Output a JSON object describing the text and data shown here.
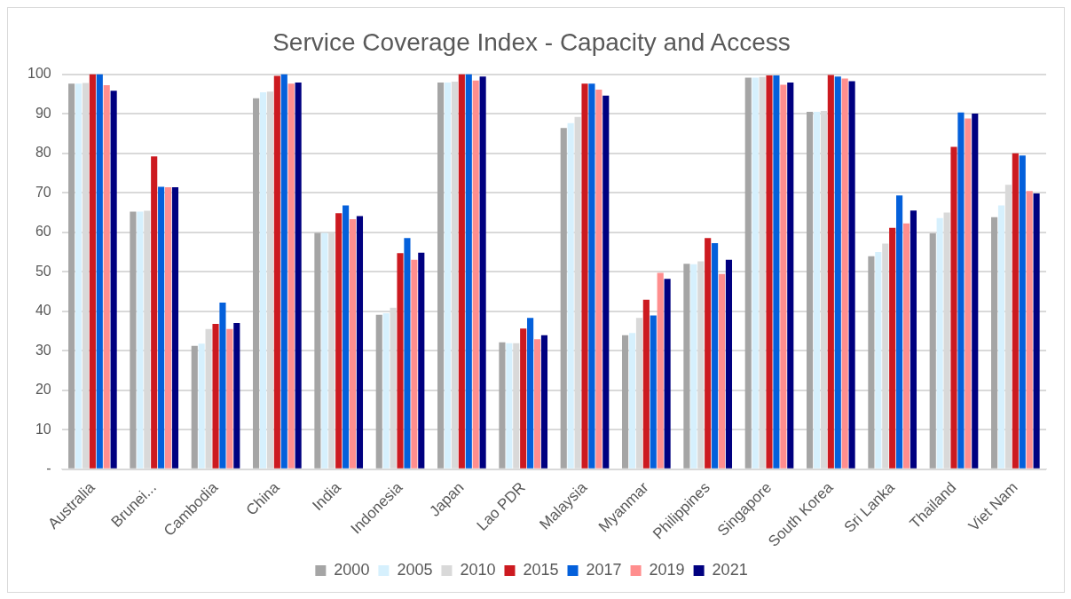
{
  "chart_data": {
    "type": "bar",
    "title": "Service Coverage Index - Capacity and Access",
    "categories": [
      "Australia",
      "Brunei...",
      "Cambodia",
      "China",
      "India",
      "Indonesia",
      "Japan",
      "Lao PDR",
      "Malaysia",
      "Myanmar",
      "Philippines",
      "Singapore",
      "South Korea",
      "Sri Lanka",
      "Thailand",
      "Viet Nam"
    ],
    "series": [
      {
        "name": "2000",
        "color": "#a5a5a5",
        "values": [
          97.6,
          65.2,
          31.2,
          93.9,
          59.8,
          39.1,
          97.9,
          32.1,
          86.4,
          33.9,
          52,
          99.1,
          90.5,
          53.9,
          59.7,
          63.8
        ]
      },
      {
        "name": "2005",
        "color": "#d6f0fd",
        "values": [
          97.6,
          65.2,
          31.8,
          95.4,
          59.8,
          39.5,
          97.9,
          31.9,
          87.6,
          34.5,
          51.9,
          99.1,
          90.5,
          55,
          63.6,
          66.8
        ]
      },
      {
        "name": "2010",
        "color": "#d9d9d9",
        "values": [
          97.8,
          65.4,
          35.5,
          95.6,
          60,
          40.9,
          98.1,
          31.9,
          89.2,
          38.3,
          52.6,
          99.3,
          90.7,
          57.1,
          65,
          72
        ]
      },
      {
        "name": "2015",
        "color": "#cc1a20",
        "values": [
          100,
          79.2,
          36.8,
          99.6,
          64.8,
          54.7,
          100,
          35.6,
          97.6,
          42.9,
          58.5,
          99.7,
          99.8,
          61.1,
          81.6,
          80
        ]
      },
      {
        "name": "2017",
        "color": "#0460db",
        "values": [
          100,
          71.5,
          42.2,
          100,
          66.8,
          58.5,
          100,
          38.3,
          97.6,
          38.9,
          57.2,
          99.7,
          99.4,
          69.3,
          90.3,
          79.4
        ]
      },
      {
        "name": "2019",
        "color": "#ff8e8e",
        "values": [
          97.2,
          71.4,
          35.5,
          97.6,
          63.3,
          53,
          98.4,
          32.9,
          96.1,
          49.7,
          49.4,
          97.3,
          98.9,
          62.2,
          88.8,
          70.4
        ]
      },
      {
        "name": "2021",
        "color": "#000080",
        "values": [
          95.8,
          71.4,
          37,
          97.9,
          64.1,
          54.8,
          99.4,
          33.9,
          94.6,
          48.2,
          53,
          97.9,
          98.2,
          65.5,
          90,
          69.8
        ]
      }
    ],
    "ylim": [
      0,
      100
    ],
    "yticks": [
      {
        "value": 0,
        "label": "-"
      },
      10,
      20,
      30,
      40,
      50,
      60,
      70,
      80,
      90,
      100
    ],
    "grid": "y",
    "legend": "bottom"
  }
}
